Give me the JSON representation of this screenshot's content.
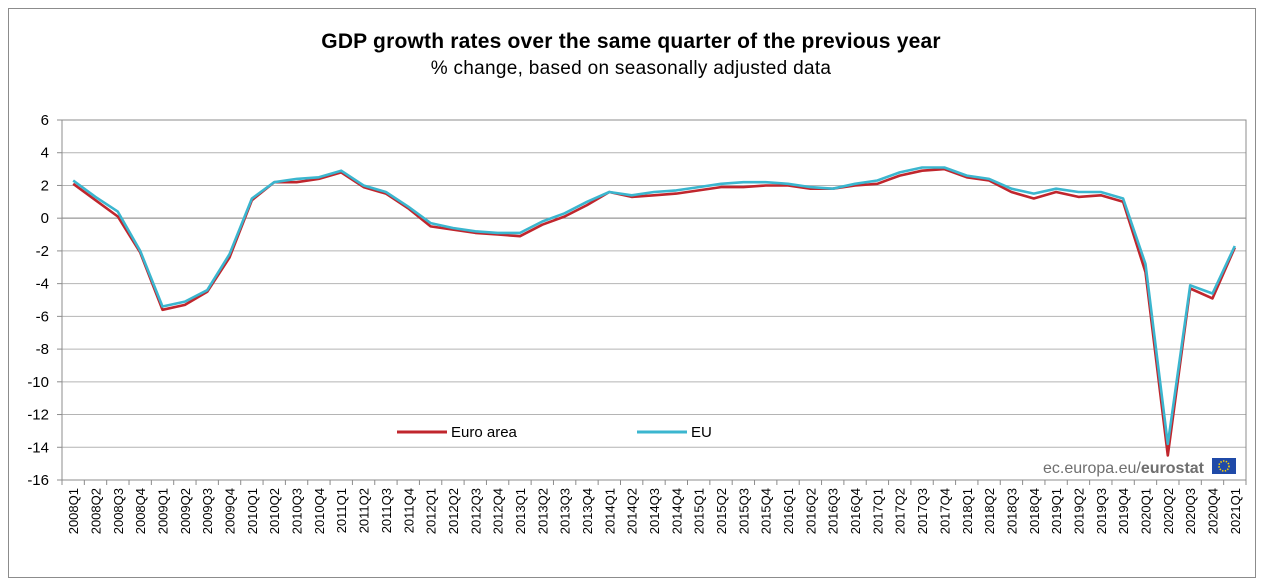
{
  "chart_data": {
    "type": "line",
    "title": "GDP growth rates over the same quarter of the previous year",
    "subtitle": "% change, based on seasonally adjusted data",
    "ylim": [
      -16,
      6
    ],
    "y_ticks": [
      6,
      4,
      2,
      0,
      -2,
      -4,
      -6,
      -8,
      -10,
      -12,
      -14,
      -16
    ],
    "grid": true,
    "legend_position": "bottom-left",
    "categories": [
      "2008Q1",
      "2008Q2",
      "2008Q3",
      "2008Q4",
      "2009Q1",
      "2009Q2",
      "2009Q3",
      "2009Q4",
      "2010Q1",
      "2010Q2",
      "2010Q3",
      "2010Q4",
      "2011Q1",
      "2011Q2",
      "2011Q3",
      "2011Q4",
      "2012Q1",
      "2012Q2",
      "2012Q3",
      "2012Q4",
      "2013Q1",
      "2013Q2",
      "2013Q3",
      "2013Q4",
      "2014Q1",
      "2014Q2",
      "2014Q3",
      "2014Q4",
      "2015Q1",
      "2015Q2",
      "2015Q3",
      "2015Q4",
      "2016Q1",
      "2016Q2",
      "2016Q3",
      "2016Q4",
      "2017Q1",
      "2017Q2",
      "2017Q3",
      "2017Q4",
      "2018Q1",
      "2018Q2",
      "2018Q3",
      "2018Q4",
      "2019Q1",
      "2019Q2",
      "2019Q3",
      "2019Q4",
      "2020Q1",
      "2020Q2",
      "2020Q3",
      "2020Q4",
      "2021Q1"
    ],
    "series": [
      {
        "name": "Euro area",
        "color": "#c0262d",
        "values": [
          2.1,
          1.1,
          0.1,
          -2.1,
          -5.6,
          -5.3,
          -4.5,
          -2.4,
          1.1,
          2.2,
          2.2,
          2.4,
          2.8,
          1.9,
          1.5,
          0.6,
          -0.5,
          -0.7,
          -0.9,
          -1.0,
          -1.1,
          -0.4,
          0.1,
          0.8,
          1.6,
          1.3,
          1.4,
          1.5,
          1.7,
          1.9,
          1.9,
          2.0,
          2.0,
          1.8,
          1.8,
          2.0,
          2.1,
          2.6,
          2.9,
          3.0,
          2.5,
          2.3,
          1.6,
          1.2,
          1.6,
          1.3,
          1.4,
          1.0,
          -3.3,
          -14.5,
          -4.3,
          -4.9,
          -1.8
        ]
      },
      {
        "name": "EU",
        "color": "#3bb6cf",
        "values": [
          2.3,
          1.3,
          0.4,
          -2.0,
          -5.4,
          -5.1,
          -4.4,
          -2.2,
          1.2,
          2.2,
          2.4,
          2.5,
          2.9,
          2.0,
          1.6,
          0.7,
          -0.3,
          -0.6,
          -0.8,
          -0.9,
          -0.9,
          -0.2,
          0.3,
          1.0,
          1.6,
          1.4,
          1.6,
          1.7,
          1.9,
          2.1,
          2.2,
          2.2,
          2.1,
          1.9,
          1.8,
          2.1,
          2.3,
          2.8,
          3.1,
          3.1,
          2.6,
          2.4,
          1.8,
          1.5,
          1.8,
          1.6,
          1.6,
          1.2,
          -2.8,
          -13.8,
          -4.1,
          -4.6,
          -1.7
        ]
      }
    ]
  },
  "source": {
    "prefix": "ec.europa.eu/",
    "brand": "eurostat"
  }
}
